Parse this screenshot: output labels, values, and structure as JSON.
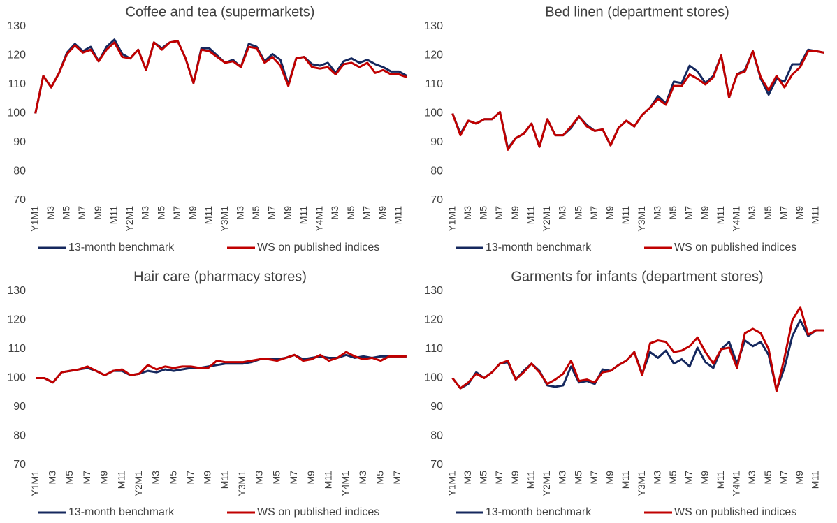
{
  "chart_data": [
    {
      "type": "line",
      "title": "Coffee and tea (supermarkets)",
      "categories": [
        "Y1M1",
        null,
        "M3",
        null,
        "M5",
        null,
        "M7",
        null,
        "M9",
        null,
        "M11",
        null,
        "Y2M1",
        null,
        "M3",
        null,
        "M5",
        null,
        "M7",
        null,
        "M9",
        null,
        "M11",
        null,
        "Y3M1",
        null,
        "M3",
        null,
        "M5",
        null,
        "M7",
        null,
        "M9",
        null,
        "M11",
        null,
        "Y4M1",
        null,
        "M3",
        null,
        "M5",
        null,
        "M7",
        null,
        "M9",
        null,
        "M11",
        null
      ],
      "series": [
        {
          "name": "13-month benchmark",
          "color": "#15285e",
          "values": [
            100,
            113,
            109,
            114,
            121,
            124,
            121.5,
            123,
            118,
            123,
            125.5,
            120.5,
            119,
            122,
            115,
            124.5,
            122.5,
            124.5,
            125,
            119,
            110.5,
            122.5,
            122.5,
            120,
            117.5,
            118.5,
            116,
            124,
            123,
            118,
            120.5,
            118.5,
            110,
            119,
            119.5,
            117,
            116.5,
            117.5,
            114,
            118,
            119,
            117.5,
            118.5,
            117,
            116,
            114.5,
            114.5,
            113
          ]
        },
        {
          "name": "WS on published indices",
          "color": "#c00000",
          "values": [
            100,
            113,
            109,
            114,
            120.5,
            123.5,
            121,
            122,
            118,
            122,
            124.5,
            119.5,
            119,
            122,
            115,
            124.5,
            122,
            124.5,
            125,
            119,
            110.5,
            122,
            121.5,
            119.5,
            117.5,
            118,
            116,
            123,
            122.5,
            117.5,
            119.5,
            116.5,
            109.5,
            119,
            119.5,
            116,
            115.5,
            116,
            113.5,
            117,
            117.5,
            116,
            117.5,
            114,
            115,
            113.5,
            113.5,
            112.5
          ]
        }
      ],
      "ylim": [
        70,
        130
      ],
      "yticks": [
        70,
        80,
        90,
        100,
        110,
        120,
        130
      ],
      "legend": "bottom"
    },
    {
      "type": "line",
      "title": "Bed linen (department stores)",
      "categories": [
        "Y1M1",
        null,
        "M3",
        null,
        "M5",
        null,
        "M7",
        null,
        "M9",
        null,
        "M11",
        null,
        "Y2M1",
        null,
        "M3",
        null,
        "M5",
        null,
        "M7",
        null,
        "M9",
        null,
        "M11",
        null,
        "Y3M1",
        null,
        "M3",
        null,
        "M5",
        null,
        "M7",
        null,
        "M9",
        null,
        "M11",
        null,
        "Y4M1",
        null,
        "M3",
        null,
        "M5",
        null,
        "M7",
        null,
        "M9",
        null,
        "M11",
        null
      ],
      "series": [
        {
          "name": "13-month benchmark",
          "color": "#15285e",
          "values": [
            100,
            93,
            97.5,
            96.5,
            98,
            98,
            100.5,
            88,
            91.5,
            93,
            96.5,
            88.5,
            98,
            92.5,
            92.5,
            95,
            99,
            96,
            94,
            94.5,
            89,
            95,
            97.5,
            95.5,
            99.5,
            102,
            106,
            103.5,
            111,
            110.5,
            116.5,
            114.5,
            110.5,
            113,
            120,
            105.5,
            113.5,
            115,
            121.5,
            112,
            106.5,
            112,
            111,
            117,
            117,
            122,
            121.5,
            121
          ]
        },
        {
          "name": "WS on published indices",
          "color": "#c00000",
          "values": [
            100,
            92.5,
            97.5,
            96.5,
            98,
            98,
            100.5,
            87.5,
            91.5,
            93,
            96.5,
            88.5,
            98,
            92.5,
            92.5,
            95.5,
            99,
            95.5,
            94,
            94.5,
            89,
            95,
            97.5,
            95.5,
            99.5,
            102,
            105,
            103,
            109.5,
            109.5,
            113.5,
            112,
            110,
            112.5,
            120,
            105.5,
            113.5,
            114.5,
            121.5,
            112.5,
            108,
            113,
            109,
            113.5,
            116,
            121.5,
            121.5,
            121
          ]
        }
      ],
      "ylim": [
        70,
        130
      ],
      "yticks": [
        70,
        80,
        90,
        100,
        110,
        120,
        130
      ],
      "legend": "bottom"
    },
    {
      "type": "line",
      "title": "Hair care (pharmacy stores)",
      "categories": [
        "Y1M1",
        null,
        "M3",
        null,
        "M5",
        null,
        "M7",
        null,
        "M9",
        null,
        "M11",
        null,
        "Y2M1",
        null,
        "M3",
        null,
        "M5",
        null,
        "M7",
        null,
        "M9",
        null,
        "M11",
        null,
        "Y3M1",
        null,
        "M3",
        null,
        "M5",
        null,
        "M7",
        null,
        "M9",
        null,
        "M11",
        null,
        "Y4M1",
        null,
        "M3",
        null,
        "M5",
        null,
        "M7",
        null
      ],
      "series": [
        {
          "name": "13-month benchmark",
          "color": "#15285e",
          "values": [
            100,
            100,
            98.5,
            102,
            102.5,
            103,
            103.5,
            102.5,
            101,
            102.5,
            102.5,
            101,
            101.5,
            102.5,
            102,
            103,
            102.5,
            103,
            103.5,
            103.5,
            104,
            104.5,
            105,
            105,
            105,
            105.5,
            106.5,
            106.5,
            106.5,
            107,
            108,
            106.5,
            107,
            107.5,
            107,
            107,
            108,
            107,
            107.5,
            107,
            107.5,
            107.5,
            107.5,
            107.5
          ]
        },
        {
          "name": "WS on published indices",
          "color": "#c00000",
          "values": [
            100,
            100,
            98.5,
            102,
            102.5,
            103,
            104,
            102.5,
            101,
            102.5,
            103,
            101,
            101.5,
            104.5,
            103,
            104,
            103.5,
            104,
            104,
            103.5,
            103.5,
            106,
            105.5,
            105.5,
            105.5,
            106,
            106.5,
            106.5,
            106,
            107,
            108,
            106,
            106.5,
            108,
            106,
            107,
            109,
            107.5,
            106.5,
            107,
            106,
            107.5,
            107.5,
            107.5
          ]
        }
      ],
      "ylim": [
        70,
        130
      ],
      "yticks": [
        70,
        80,
        90,
        100,
        110,
        120,
        130
      ],
      "legend": "bottom"
    },
    {
      "type": "line",
      "title": "Garments for infants (department stores)",
      "categories": [
        "Y1M1",
        null,
        "M3",
        null,
        "M5",
        null,
        "M7",
        null,
        "M9",
        null,
        "M11",
        null,
        "Y2M1",
        null,
        "M3",
        null,
        "M5",
        null,
        "M7",
        null,
        "M9",
        null,
        "M11",
        null,
        "Y3M1",
        null,
        "M3",
        null,
        "M5",
        null,
        "M7",
        null,
        "M9",
        null,
        "M11",
        null,
        "Y4M1",
        null,
        "M3",
        null,
        "M5",
        null,
        "M7",
        null,
        "M9",
        null,
        "M11",
        null
      ],
      "series": [
        {
          "name": "13-month benchmark",
          "color": "#15285e",
          "values": [
            100,
            96.5,
            98,
            102,
            100,
            102,
            105,
            105.5,
            99.5,
            102.5,
            105,
            102.5,
            97.5,
            97,
            97.5,
            104,
            98.5,
            99,
            98,
            103,
            102.5,
            104.5,
            106,
            109,
            101.5,
            109,
            107,
            109.5,
            105,
            106.5,
            104,
            110.5,
            105.5,
            103.5,
            110,
            112.5,
            105,
            113,
            111,
            112.5,
            108,
            96,
            103.5,
            114.5,
            120,
            114.5,
            116.5,
            116.5
          ]
        },
        {
          "name": "WS on published indices",
          "color": "#c00000",
          "values": [
            100,
            96.5,
            98.5,
            101.5,
            100,
            102,
            105,
            106,
            99.5,
            102,
            105,
            102,
            98,
            99.5,
            101.5,
            106,
            99,
            99.5,
            98.5,
            102,
            102.5,
            104.5,
            106,
            109,
            101,
            112,
            113,
            112.5,
            109,
            109.5,
            111,
            114,
            109,
            105,
            110,
            110.5,
            103.5,
            115.5,
            117,
            115.5,
            110,
            95.5,
            107,
            120,
            124.5,
            115,
            116.5,
            116.5
          ]
        }
      ],
      "ylim": [
        70,
        130
      ],
      "yticks": [
        70,
        80,
        90,
        100,
        110,
        120,
        130
      ],
      "legend": "bottom"
    }
  ]
}
